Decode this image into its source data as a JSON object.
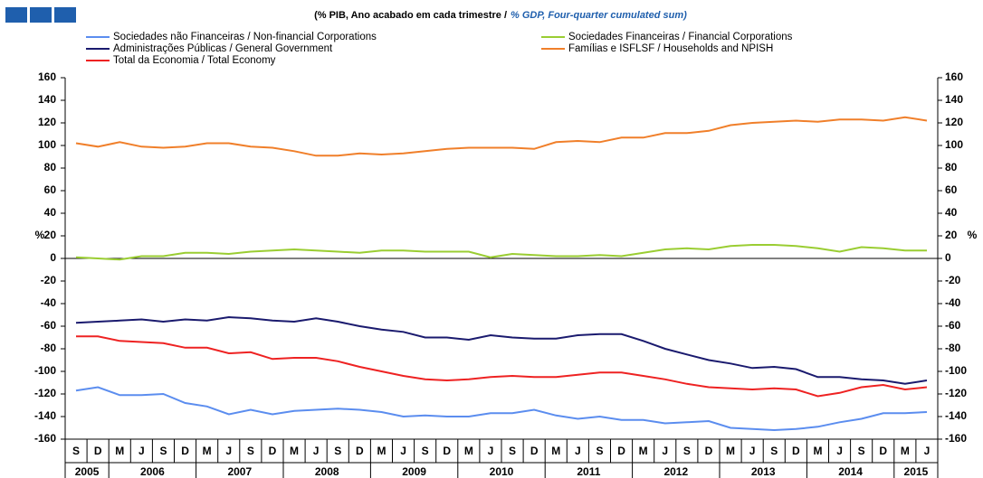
{
  "chart_data": {
    "type": "line",
    "title": "(% PIB, Ano acabado em cada trimestre  /",
    "subtitle": "% GDP, Four-quarter cumulated sum)",
    "y_label": "%",
    "categories": [
      "S",
      "D",
      "M",
      "J",
      "S",
      "D",
      "M",
      "J",
      "S",
      "D",
      "M",
      "J",
      "S",
      "D",
      "M",
      "J",
      "S",
      "D",
      "M",
      "J",
      "S",
      "D",
      "M",
      "J",
      "S",
      "D",
      "M",
      "J",
      "S",
      "D",
      "M",
      "J",
      "S",
      "D",
      "M",
      "J",
      "S",
      "D",
      "M",
      "J"
    ],
    "years": [
      "2005",
      "2006",
      "2007",
      "2008",
      "2009",
      "2010",
      "2011",
      "2012",
      "2013",
      "2014",
      "2015"
    ],
    "ylim": [
      -160,
      160
    ],
    "yticks": [
      -160,
      -140,
      -120,
      -100,
      -80,
      -60,
      -40,
      -20,
      0,
      20,
      40,
      60,
      80,
      100,
      120,
      140,
      160
    ],
    "grid": false,
    "series": [
      {
        "name": "Sociedades não Financeiras / Non-financial Corporations",
        "color": "#5b8def",
        "values": [
          -117,
          -114,
          -121,
          -121,
          -120,
          -128,
          -131,
          -138,
          -134,
          -138,
          -135,
          -134,
          -133,
          -134,
          -136,
          -140,
          -139,
          -140,
          -140,
          -137,
          -137,
          -134,
          -139,
          -142,
          -140,
          -143,
          -143,
          -146,
          -145,
          -144,
          -150,
          -151,
          -152,
          -151,
          -149,
          -145,
          -142,
          -137,
          -137,
          -136
        ]
      },
      {
        "name": "Sociedades Financeiras / Financial Corporations",
        "color": "#9acd32",
        "values": [
          1,
          0,
          -1,
          2,
          2,
          5,
          5,
          4,
          6,
          7,
          8,
          7,
          6,
          5,
          7,
          7,
          6,
          6,
          6,
          1,
          4,
          3,
          2,
          2,
          3,
          2,
          5,
          8,
          9,
          8,
          11,
          12,
          12,
          11,
          9,
          6,
          10,
          9,
          7,
          7
        ]
      },
      {
        "name": "Administrações Públicas / General Government",
        "color": "#1a1a6e",
        "values": [
          -57,
          -56,
          -55,
          -54,
          -56,
          -54,
          -55,
          -52,
          -53,
          -55,
          -56,
          -53,
          -56,
          -60,
          -63,
          -65,
          -70,
          -70,
          -72,
          -68,
          -70,
          -71,
          -71,
          -68,
          -67,
          -67,
          -73,
          -80,
          -85,
          -90,
          -93,
          -97,
          -96,
          -98,
          -105,
          -105,
          -107,
          -108,
          -111,
          -108
        ]
      },
      {
        "name": "Famílias e ISFLSF / Households and NPISH",
        "color": "#f07f2a",
        "values": [
          102,
          99,
          103,
          99,
          98,
          99,
          102,
          102,
          99,
          98,
          95,
          91,
          91,
          93,
          92,
          93,
          95,
          97,
          98,
          98,
          98,
          97,
          103,
          104,
          103,
          107,
          107,
          111,
          111,
          113,
          118,
          120,
          121,
          122,
          121,
          123,
          123,
          122,
          125,
          122
        ]
      },
      {
        "name": "Total da Economia / Total Economy",
        "color": "#ee2222",
        "values": [
          -69,
          -69,
          -73,
          -74,
          -75,
          -79,
          -79,
          -84,
          -83,
          -89,
          -88,
          -88,
          -91,
          -96,
          -100,
          -104,
          -107,
          -108,
          -107,
          -105,
          -104,
          -105,
          -105,
          -103,
          -101,
          -101,
          -104,
          -107,
          -111,
          -114,
          -115,
          -116,
          -115,
          -116,
          -122,
          -119,
          -114,
          -112,
          -116,
          -114
        ]
      }
    ]
  }
}
